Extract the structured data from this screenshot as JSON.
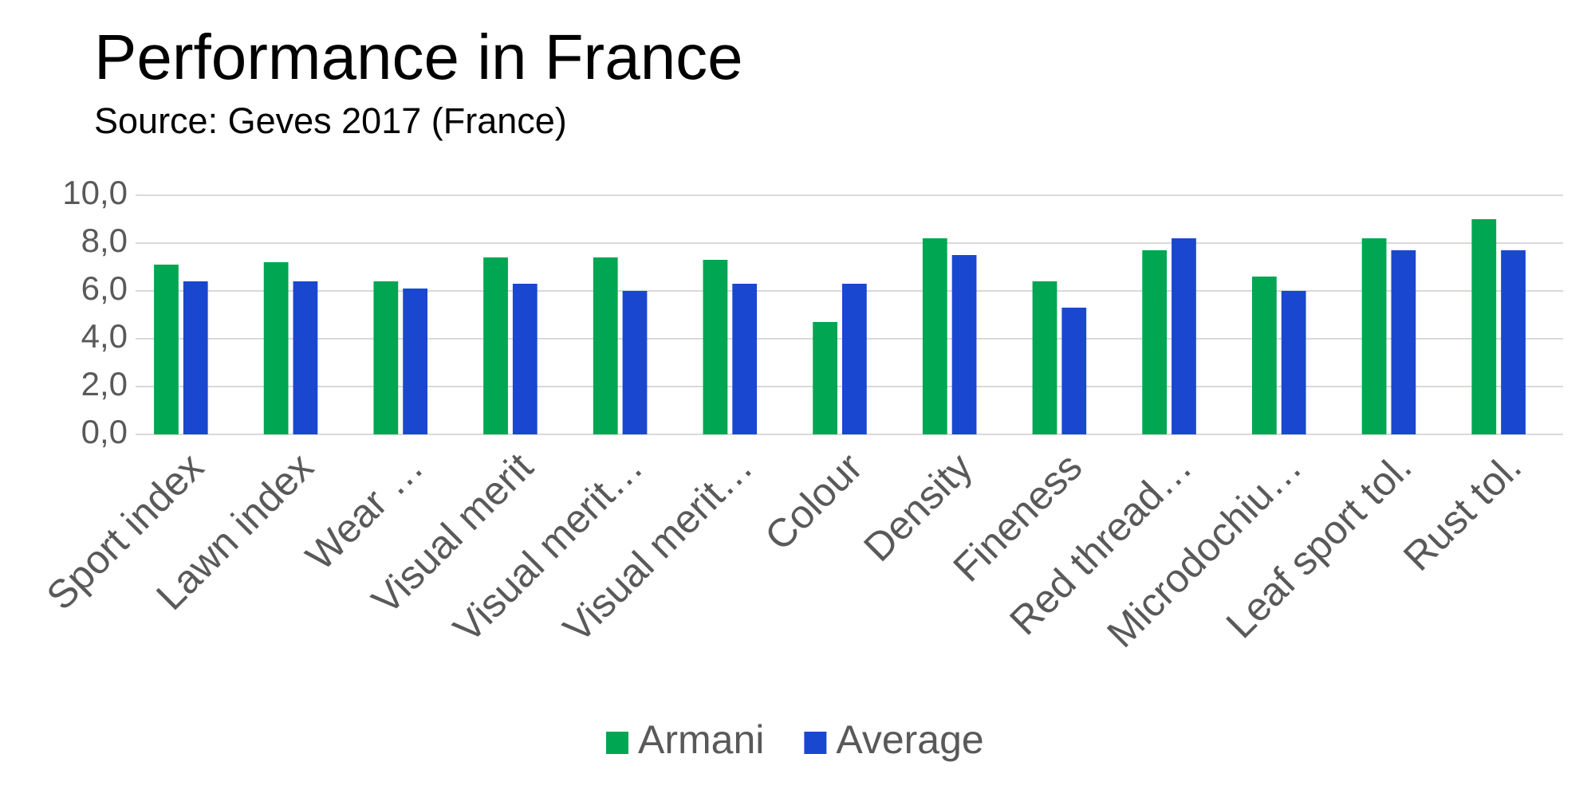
{
  "chart_data": {
    "type": "bar",
    "title": "Performance in France",
    "subtitle": "Source: Geves 2017 (France)",
    "categories": [
      "Sport index",
      "Lawn index",
      "Wear …",
      "Visual merit",
      "Visual merit…",
      "Visual merit…",
      "Colour",
      "Density",
      "Fineness",
      "Red thread…",
      "Microdochiu…",
      "Leaf sport tol.",
      "Rust tol."
    ],
    "series": [
      {
        "name": "Armani",
        "color": "#00a651",
        "values": [
          7.1,
          7.2,
          6.4,
          7.4,
          7.4,
          7.3,
          4.7,
          8.2,
          6.4,
          7.7,
          6.6,
          8.2,
          9.0
        ]
      },
      {
        "name": "Average",
        "color": "#1a47d0",
        "values": [
          6.4,
          6.4,
          6.1,
          6.3,
          6.0,
          6.3,
          6.3,
          7.5,
          5.3,
          8.2,
          6.0,
          7.7,
          7.7
        ]
      }
    ],
    "ylim": [
      0,
      10
    ],
    "yticks": [
      {
        "value": 0,
        "label": "0,0"
      },
      {
        "value": 2,
        "label": "2,0"
      },
      {
        "value": 4,
        "label": "4,0"
      },
      {
        "value": 6,
        "label": "6,0"
      },
      {
        "value": 8,
        "label": "8,0"
      },
      {
        "value": 10,
        "label": "10,0"
      }
    ],
    "grid": true,
    "legend": "bottom"
  }
}
